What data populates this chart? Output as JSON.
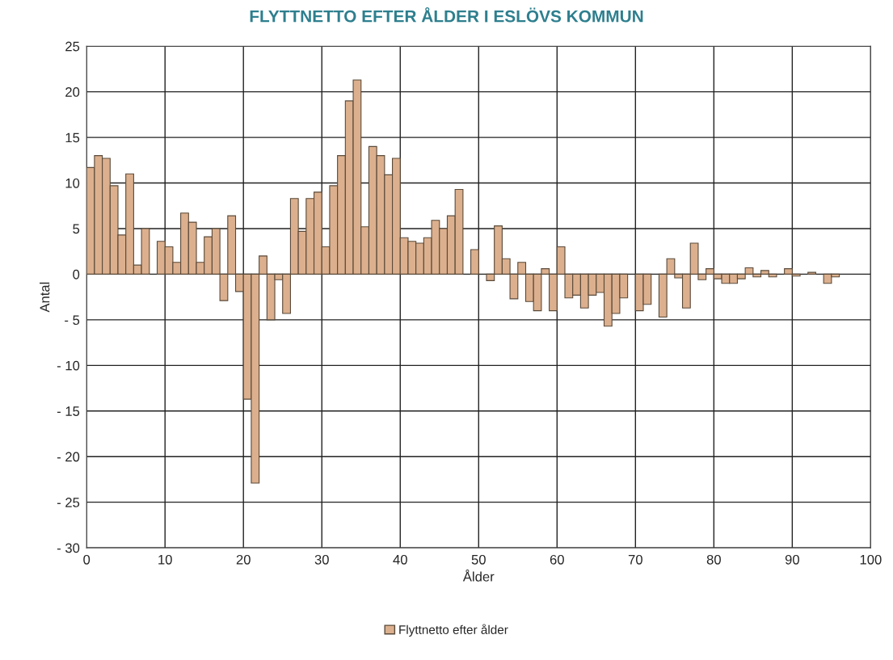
{
  "chart_data": {
    "type": "bar",
    "title": "FLYTTNETTO EFTER ÅLDER I ESLÖVS KOMMUN",
    "xlabel": "Ålder",
    "ylabel": "Antal",
    "x": [
      0,
      1,
      2,
      3,
      4,
      5,
      6,
      7,
      8,
      9,
      10,
      11,
      12,
      13,
      14,
      15,
      16,
      17,
      18,
      19,
      20,
      21,
      22,
      23,
      24,
      25,
      26,
      27,
      28,
      29,
      30,
      31,
      32,
      33,
      34,
      35,
      36,
      37,
      38,
      39,
      40,
      41,
      42,
      43,
      44,
      45,
      46,
      47,
      48,
      49,
      50,
      51,
      52,
      53,
      54,
      55,
      56,
      57,
      58,
      59,
      60,
      61,
      62,
      63,
      64,
      65,
      66,
      67,
      68,
      69,
      70,
      71,
      72,
      73,
      74,
      75,
      76,
      77,
      78,
      79,
      80,
      81,
      82,
      83,
      84,
      85,
      86,
      87,
      88,
      89,
      90,
      91,
      92,
      93,
      94,
      95
    ],
    "series": [
      {
        "name": "Flyttnetto efter ålder",
        "color": "#dcb08e",
        "values": [
          11.7,
          13.0,
          12.7,
          9.7,
          4.3,
          11.0,
          1.0,
          5.0,
          null,
          3.6,
          3.0,
          1.3,
          6.7,
          5.7,
          1.3,
          4.1,
          5.0,
          -2.9,
          6.4,
          -1.9,
          -13.7,
          -22.9,
          2.0,
          -5.0,
          -0.6,
          -4.3,
          8.3,
          4.7,
          8.3,
          9.0,
          3.0,
          9.7,
          13.0,
          19.0,
          21.3,
          5.2,
          14.0,
          13.0,
          10.9,
          12.7,
          4.0,
          3.6,
          3.4,
          4.0,
          5.9,
          5.0,
          6.4,
          9.3,
          null,
          2.7,
          null,
          -0.7,
          5.3,
          1.7,
          -2.7,
          1.3,
          -3.0,
          -4.0,
          0.6,
          -4.0,
          3.0,
          -2.6,
          -2.3,
          -3.7,
          -2.3,
          -2.0,
          -5.7,
          -4.3,
          -2.6,
          null,
          -4.0,
          -3.3,
          null,
          -4.7,
          1.7,
          -0.4,
          -3.7,
          3.4,
          -0.6,
          0.6,
          -0.5,
          -1.0,
          -1.0,
          -0.5,
          0.7,
          -0.3,
          0.4,
          -0.3,
          null,
          0.6,
          -0.2,
          null,
          0.2,
          null,
          -1.0,
          -0.3
        ]
      }
    ],
    "xlim": [
      0,
      100
    ],
    "xticks": [
      0,
      10,
      20,
      30,
      40,
      50,
      60,
      70,
      80,
      90,
      100
    ],
    "ylim": [
      -30,
      25
    ],
    "yticks": [
      {
        "value": -30,
        "label": "- 30"
      },
      {
        "value": -25,
        "label": "- 25"
      },
      {
        "value": -20,
        "label": "- 20"
      },
      {
        "value": -15,
        "label": "- 15"
      },
      {
        "value": -10,
        "label": "- 10"
      },
      {
        "value": -5,
        "label": "- 5"
      },
      0,
      5,
      10,
      15,
      20,
      25
    ],
    "grid": true,
    "legend": "bottom"
  }
}
